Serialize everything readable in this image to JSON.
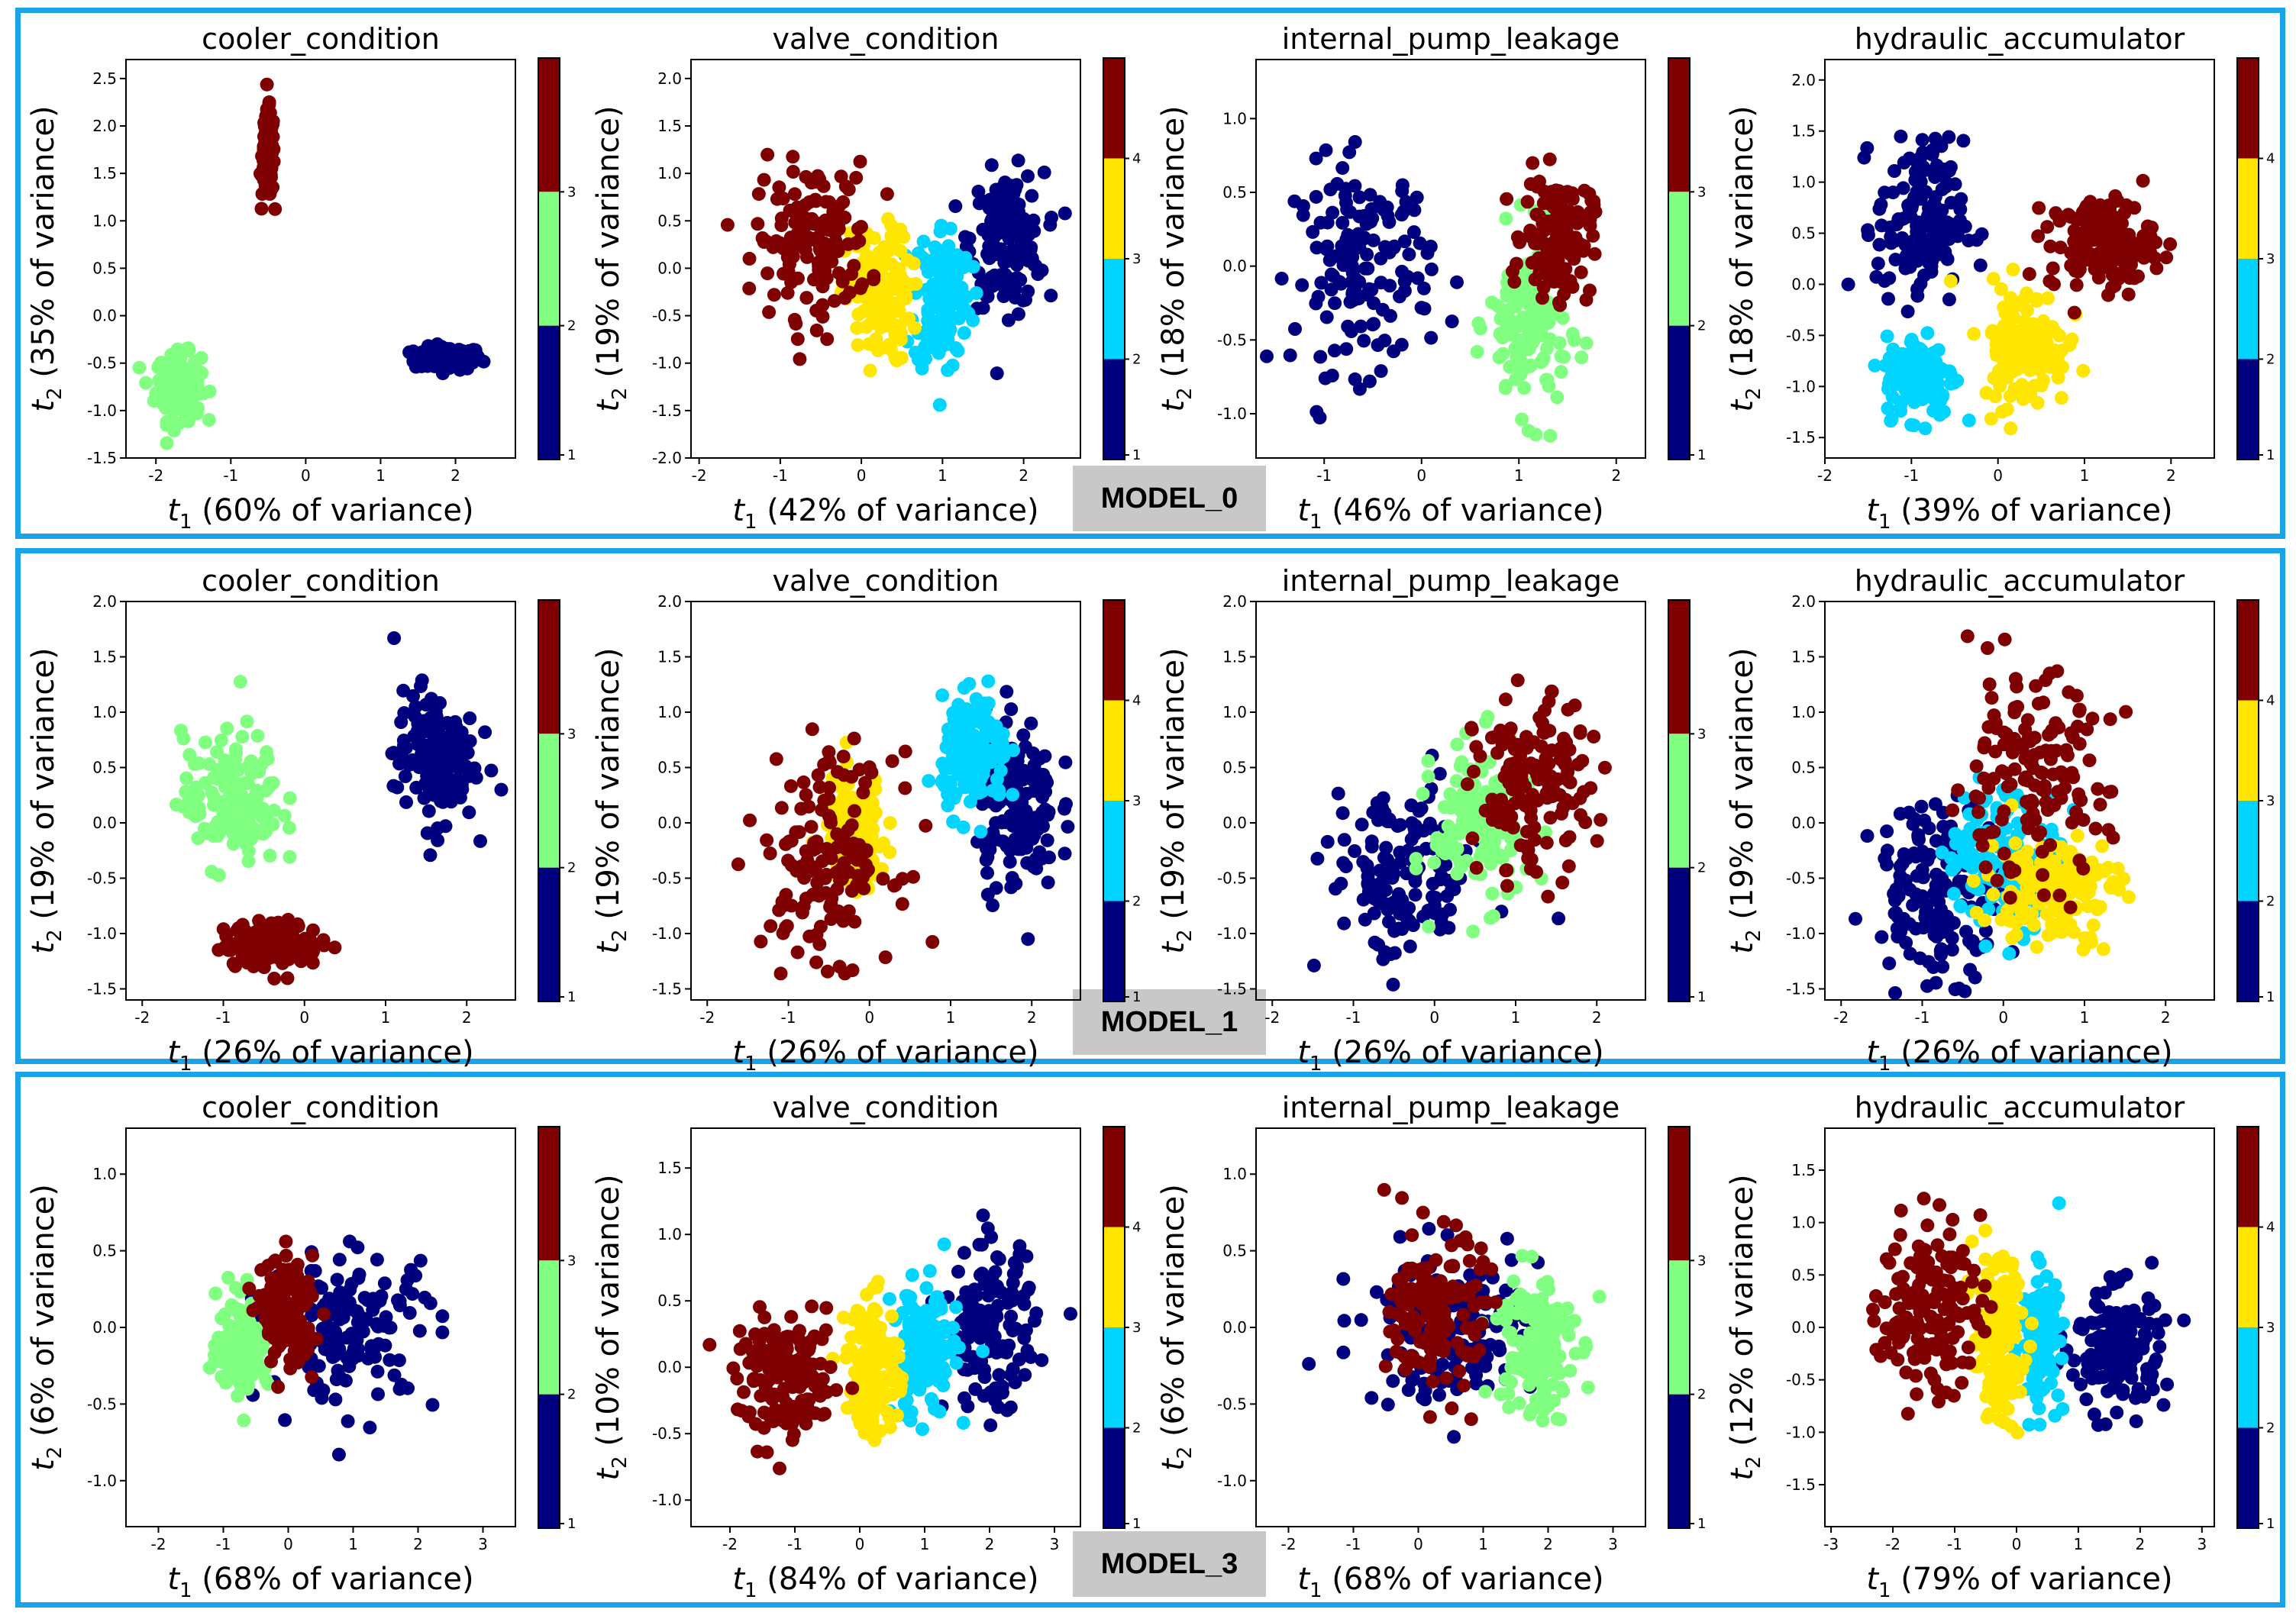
{
  "colors": {
    "panel_border": "#1aa3e8",
    "class_1": "#00007f",
    "class_2": "#80ff80",
    "class_2_cyan": "#00d4ff",
    "class_3": "#ffe600",
    "class_4": "#7f0000"
  },
  "models": [
    {
      "label": "MODEL_0"
    },
    {
      "label": "MODEL_1"
    },
    {
      "label": "MODEL_3"
    }
  ],
  "chart_data": [
    {
      "type": "scatter",
      "panel": "MODEL_0",
      "title": "cooler_condition",
      "xlabel": "t1 (60% of variance)",
      "ylabel": "t2 (35% of variance)",
      "x_variance": "60%",
      "y_variance": "35%",
      "xlim": [
        -2.4,
        2.8
      ],
      "ylim": [
        -1.5,
        2.7
      ],
      "xticks": [
        -2,
        -1,
        0,
        1,
        2
      ],
      "yticks": [
        -1.5,
        -1.0,
        -0.5,
        0.0,
        0.5,
        1.0,
        1.5,
        2.0,
        2.5
      ],
      "colorbar": {
        "type": "cooler",
        "ticks": [
          "1",
          "2",
          "3"
        ]
      },
      "series": [
        {
          "name": "1",
          "color": "class_1",
          "center": [
            1.9,
            -0.45
          ],
          "spread": [
            0.45,
            0.12
          ]
        },
        {
          "name": "2",
          "color": "class_2",
          "center": [
            -1.7,
            -0.75
          ],
          "spread": [
            0.3,
            0.35
          ]
        },
        {
          "name": "3",
          "color": "class_4",
          "center": [
            -0.5,
            1.7
          ],
          "spread": [
            0.08,
            0.45
          ]
        }
      ]
    },
    {
      "type": "scatter",
      "panel": "MODEL_0",
      "title": "valve_condition",
      "xlabel": "t1 (42% of variance)",
      "ylabel": "t2 (19% of variance)",
      "x_variance": "42%",
      "y_variance": "19%",
      "xlim": [
        -2.1,
        2.7
      ],
      "ylim": [
        -2.0,
        2.2
      ],
      "xticks": [
        -2,
        -1,
        0,
        1,
        2
      ],
      "yticks": [
        -2.0,
        -1.5,
        -1.0,
        -0.5,
        0.0,
        0.5,
        1.0,
        1.5,
        2.0
      ],
      "colorbar": {
        "type": "valve",
        "ticks": [
          "1",
          "2",
          "3",
          "4"
        ]
      },
      "series": [
        {
          "name": "1",
          "color": "class_1",
          "center": [
            1.8,
            0.3
          ],
          "spread": [
            0.45,
            0.7
          ]
        },
        {
          "name": "2",
          "color": "class_2_cyan",
          "center": [
            1.0,
            -0.3
          ],
          "spread": [
            0.35,
            0.8
          ]
        },
        {
          "name": "3",
          "color": "class_3",
          "center": [
            0.2,
            -0.3
          ],
          "spread": [
            0.4,
            0.7
          ]
        },
        {
          "name": "4",
          "color": "class_4",
          "center": [
            -0.6,
            0.3
          ],
          "spread": [
            0.7,
            0.8
          ]
        }
      ]
    },
    {
      "type": "scatter",
      "panel": "MODEL_0",
      "title": "internal_pump_leakage",
      "xlabel": "t1 (46% of variance)",
      "ylabel": "t2 (18% of variance)",
      "x_variance": "46%",
      "y_variance": "18%",
      "xlim": [
        -1.7,
        2.3
      ],
      "ylim": [
        -1.3,
        1.4
      ],
      "xticks": [
        -1,
        0,
        1,
        2
      ],
      "yticks": [
        -1.0,
        -0.5,
        0.0,
        0.5,
        1.0
      ],
      "colorbar": {
        "type": "pump",
        "ticks": [
          "1",
          "2",
          "3"
        ]
      },
      "series": [
        {
          "name": "1",
          "color": "class_1",
          "center": [
            -0.6,
            0.0
          ],
          "spread": [
            0.7,
            0.7
          ]
        },
        {
          "name": "2",
          "color": "class_2",
          "center": [
            1.1,
            -0.4
          ],
          "spread": [
            0.4,
            0.6
          ]
        },
        {
          "name": "3",
          "color": "class_4",
          "center": [
            1.4,
            0.2
          ],
          "spread": [
            0.35,
            0.4
          ]
        }
      ]
    },
    {
      "type": "scatter",
      "panel": "MODEL_0",
      "title": "hydraulic_accumulator",
      "xlabel": "t1 (39% of variance)",
      "ylabel": "t2 (18% of variance)",
      "x_variance": "39%",
      "y_variance": "18%",
      "xlim": [
        -2.0,
        2.5
      ],
      "ylim": [
        -1.7,
        2.2
      ],
      "xticks": [
        -2,
        -1,
        0,
        1,
        2
      ],
      "yticks": [
        -1.5,
        -1.0,
        -0.5,
        0.0,
        0.5,
        1.0,
        1.5,
        2.0
      ],
      "colorbar": {
        "type": "valve",
        "ticks": [
          "1",
          "2",
          "3",
          "4"
        ]
      },
      "series": [
        {
          "name": "1",
          "color": "class_1",
          "center": [
            -0.9,
            0.6
          ],
          "spread": [
            0.5,
            0.8
          ]
        },
        {
          "name": "2",
          "color": "class_2_cyan",
          "center": [
            -0.9,
            -0.9
          ],
          "spread": [
            0.4,
            0.4
          ]
        },
        {
          "name": "3",
          "color": "class_3",
          "center": [
            0.3,
            -0.6
          ],
          "spread": [
            0.5,
            0.6
          ]
        },
        {
          "name": "4",
          "color": "class_4",
          "center": [
            1.2,
            0.4
          ],
          "spread": [
            0.6,
            0.45
          ]
        }
      ]
    },
    {
      "type": "scatter",
      "panel": "MODEL_1",
      "title": "cooler_condition",
      "xlabel": "t1 (26% of variance)",
      "ylabel": "t2 (19% of variance)",
      "x_variance": "26%",
      "y_variance": "19%",
      "xlim": [
        -2.2,
        2.6
      ],
      "ylim": [
        -1.6,
        2.0
      ],
      "xticks": [
        -2,
        -1,
        0,
        1,
        2
      ],
      "yticks": [
        -1.5,
        -1.0,
        -0.5,
        0.0,
        0.5,
        1.0,
        1.5,
        2.0
      ],
      "colorbar": {
        "type": "cooler",
        "ticks": [
          "1",
          "2",
          "3"
        ]
      },
      "series": [
        {
          "name": "1",
          "color": "class_1",
          "center": [
            1.6,
            0.6
          ],
          "spread": [
            0.5,
            0.6
          ]
        },
        {
          "name": "2",
          "color": "class_2",
          "center": [
            -0.9,
            0.2
          ],
          "spread": [
            0.6,
            0.6
          ]
        },
        {
          "name": "3",
          "color": "class_4",
          "center": [
            -0.4,
            -1.1
          ],
          "spread": [
            0.6,
            0.2
          ]
        }
      ]
    },
    {
      "type": "scatter",
      "panel": "MODEL_1",
      "title": "valve_condition",
      "xlabel": "t1 (26% of variance)",
      "ylabel": "t2 (19% of variance)",
      "x_variance": "26%",
      "y_variance": "19%",
      "xlim": [
        -2.2,
        2.6
      ],
      "ylim": [
        -1.6,
        2.0
      ],
      "xticks": [
        -2,
        -1,
        0,
        1,
        2
      ],
      "yticks": [
        -1.5,
        -1.0,
        -0.5,
        0.0,
        0.5,
        1.0,
        1.5,
        2.0
      ],
      "colorbar": {
        "type": "valve",
        "ticks": [
          "1",
          "2",
          "3",
          "4"
        ]
      },
      "series": [
        {
          "name": "1",
          "color": "class_1",
          "center": [
            1.8,
            0.2
          ],
          "spread": [
            0.5,
            0.8
          ]
        },
        {
          "name": "2",
          "color": "class_2_cyan",
          "center": [
            1.3,
            0.6
          ],
          "spread": [
            0.4,
            0.5
          ]
        },
        {
          "name": "3",
          "color": "class_3",
          "center": [
            -0.2,
            -0.1
          ],
          "spread": [
            0.4,
            0.5
          ]
        },
        {
          "name": "4",
          "color": "class_4",
          "center": [
            -0.5,
            -0.3
          ],
          "spread": [
            0.8,
            0.9
          ]
        }
      ]
    },
    {
      "type": "scatter",
      "panel": "MODEL_1",
      "title": "internal_pump_leakage",
      "xlabel": "t1 (26% of variance)",
      "ylabel": "t2 (19% of variance)",
      "x_variance": "26%",
      "y_variance": "19%",
      "xlim": [
        -2.2,
        2.6
      ],
      "ylim": [
        -1.6,
        2.0
      ],
      "xticks": [
        -2,
        -1,
        0,
        1,
        2
      ],
      "yticks": [
        -1.5,
        -1.0,
        -0.5,
        0.0,
        0.5,
        1.0,
        1.5,
        2.0
      ],
      "colorbar": {
        "type": "pump",
        "ticks": [
          "1",
          "2",
          "3"
        ]
      },
      "series": [
        {
          "name": "1",
          "color": "class_1",
          "center": [
            -0.4,
            -0.5
          ],
          "spread": [
            0.9,
            0.8
          ]
        },
        {
          "name": "2",
          "color": "class_2",
          "center": [
            0.6,
            0.0
          ],
          "spread": [
            0.6,
            0.7
          ]
        },
        {
          "name": "3",
          "color": "class_4",
          "center": [
            1.2,
            0.3
          ],
          "spread": [
            0.7,
            0.8
          ]
        }
      ]
    },
    {
      "type": "scatter",
      "panel": "MODEL_1",
      "title": "hydraulic_accumulator",
      "xlabel": "t1 (26% of variance)",
      "ylabel": "t2 (19% of variance)",
      "x_variance": "26%",
      "y_variance": "19%",
      "xlim": [
        -2.2,
        2.6
      ],
      "ylim": [
        -1.6,
        2.0
      ],
      "xticks": [
        -2,
        -1,
        0,
        1,
        2
      ],
      "yticks": [
        -1.5,
        -1.0,
        -0.5,
        0.0,
        0.5,
        1.0,
        1.5,
        2.0
      ],
      "colorbar": {
        "type": "valve",
        "ticks": [
          "1",
          "2",
          "3",
          "4"
        ]
      },
      "series": [
        {
          "name": "1",
          "color": "class_1",
          "center": [
            -0.8,
            -0.6
          ],
          "spread": [
            0.8,
            0.8
          ]
        },
        {
          "name": "2",
          "color": "class_2_cyan",
          "center": [
            0.0,
            -0.3
          ],
          "spread": [
            0.7,
            0.6
          ]
        },
        {
          "name": "3",
          "color": "class_3",
          "center": [
            0.6,
            -0.6
          ],
          "spread": [
            0.8,
            0.5
          ]
        },
        {
          "name": "4",
          "color": "class_4",
          "center": [
            0.3,
            0.4
          ],
          "spread": [
            1.0,
            0.9
          ]
        }
      ]
    },
    {
      "type": "scatter",
      "panel": "MODEL_3",
      "title": "cooler_condition",
      "xlabel": "t1 (68% of variance)",
      "ylabel": "t2 (6% of variance)",
      "x_variance": "68%",
      "y_variance": "6%",
      "xlim": [
        -2.5,
        3.5
      ],
      "ylim": [
        -1.3,
        1.3
      ],
      "xticks": [
        -2,
        -1,
        0,
        1,
        2,
        3
      ],
      "yticks": [
        -1.0,
        -0.5,
        0.0,
        0.5,
        1.0
      ],
      "colorbar": {
        "type": "cooler",
        "ticks": [
          "1",
          "2",
          "3"
        ]
      },
      "series": [
        {
          "name": "1",
          "color": "class_1",
          "center": [
            1.0,
            0.0
          ],
          "spread": [
            1.3,
            0.5
          ]
        },
        {
          "name": "2",
          "color": "class_2",
          "center": [
            -0.7,
            -0.1
          ],
          "spread": [
            0.4,
            0.3
          ]
        },
        {
          "name": "3",
          "color": "class_4",
          "center": [
            0.0,
            0.1
          ],
          "spread": [
            0.4,
            0.35
          ]
        }
      ]
    },
    {
      "type": "scatter",
      "panel": "MODEL_3",
      "title": "valve_condition",
      "xlabel": "t1 (84% of variance)",
      "ylabel": "t2 (10% of variance)",
      "x_variance": "84%",
      "y_variance": "10%",
      "xlim": [
        -2.6,
        3.4
      ],
      "ylim": [
        -1.2,
        1.8
      ],
      "xticks": [
        -2,
        -1,
        0,
        1,
        2,
        3
      ],
      "yticks": [
        -1.0,
        -0.5,
        0.0,
        0.5,
        1.0,
        1.5
      ],
      "colorbar": {
        "type": "valve",
        "ticks": [
          "1",
          "2",
          "3",
          "4"
        ]
      },
      "series": [
        {
          "name": "1",
          "color": "class_1",
          "center": [
            2.0,
            0.3
          ],
          "spread": [
            0.7,
            0.6
          ]
        },
        {
          "name": "2",
          "color": "class_2_cyan",
          "center": [
            1.0,
            0.1
          ],
          "spread": [
            0.5,
            0.5
          ]
        },
        {
          "name": "3",
          "color": "class_3",
          "center": [
            0.2,
            0.0
          ],
          "spread": [
            0.4,
            0.5
          ]
        },
        {
          "name": "4",
          "color": "class_4",
          "center": [
            -1.1,
            -0.1
          ],
          "spread": [
            0.8,
            0.45
          ]
        }
      ]
    },
    {
      "type": "scatter",
      "panel": "MODEL_3",
      "title": "internal_pump_leakage",
      "xlabel": "t1 (68% of variance)",
      "ylabel": "t2 (6% of variance)",
      "x_variance": "68%",
      "y_variance": "6%",
      "xlim": [
        -2.5,
        3.5
      ],
      "ylim": [
        -1.3,
        1.3
      ],
      "xticks": [
        -2,
        -1,
        0,
        1,
        2,
        3
      ],
      "yticks": [
        -1.0,
        -0.5,
        0.0,
        0.5,
        1.0
      ],
      "colorbar": {
        "type": "pump",
        "ticks": [
          "1",
          "2",
          "3"
        ]
      },
      "series": [
        {
          "name": "1",
          "color": "class_1",
          "center": [
            0.5,
            0.0
          ],
          "spread": [
            1.4,
            0.5
          ]
        },
        {
          "name": "2",
          "color": "class_2",
          "center": [
            1.8,
            -0.1
          ],
          "spread": [
            0.6,
            0.5
          ]
        },
        {
          "name": "3",
          "color": "class_4",
          "center": [
            0.3,
            0.1
          ],
          "spread": [
            0.7,
            0.5
          ]
        }
      ]
    },
    {
      "type": "scatter",
      "panel": "MODEL_3",
      "title": "hydraulic_accumulator",
      "xlabel": "t1 (79% of variance)",
      "ylabel": "t2 (12% of variance)",
      "x_variance": "79%",
      "y_variance": "12%",
      "xlim": [
        -3.1,
        3.2
      ],
      "ylim": [
        -1.9,
        1.9
      ],
      "xticks": [
        -3,
        -2,
        -1,
        0,
        1,
        2,
        3
      ],
      "yticks": [
        -1.5,
        -1.0,
        -0.5,
        0.0,
        0.5,
        1.0,
        1.5
      ],
      "colorbar": {
        "type": "valve",
        "ticks": [
          "1",
          "2",
          "3",
          "4"
        ]
      },
      "series": [
        {
          "name": "1",
          "color": "class_1",
          "center": [
            1.6,
            -0.2
          ],
          "spread": [
            0.8,
            0.6
          ]
        },
        {
          "name": "2",
          "color": "class_2_cyan",
          "center": [
            0.4,
            -0.1
          ],
          "spread": [
            0.3,
            0.6
          ]
        },
        {
          "name": "3",
          "color": "class_3",
          "center": [
            -0.3,
            -0.1
          ],
          "spread": [
            0.4,
            0.8
          ]
        },
        {
          "name": "4",
          "color": "class_4",
          "center": [
            -1.4,
            0.2
          ],
          "spread": [
            0.8,
            0.8
          ]
        }
      ]
    }
  ]
}
